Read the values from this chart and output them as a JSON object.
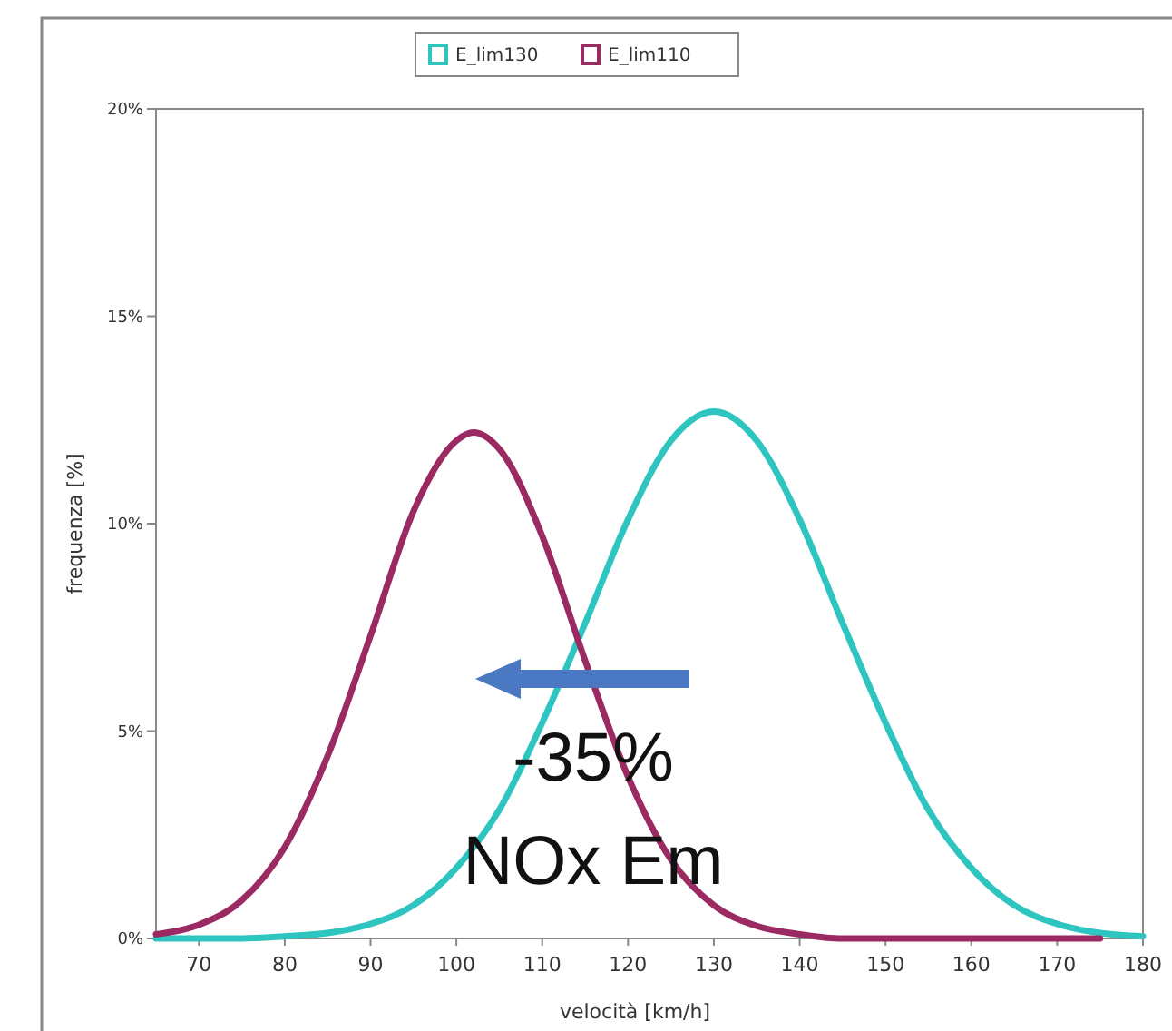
{
  "chart_data": {
    "type": "line",
    "xlabel": "velocità [km/h]",
    "ylabel": "frequenza [%]",
    "xlim": [
      65,
      180
    ],
    "xticks": [
      70,
      80,
      90,
      100,
      110,
      120,
      130,
      140,
      150,
      160,
      170,
      180
    ],
    "ylim": [
      0,
      20
    ],
    "yticks": [
      {
        "value": 0,
        "label": "0%"
      },
      {
        "value": 5,
        "label": "5%"
      },
      {
        "value": 10,
        "label": "10%"
      },
      {
        "value": 15,
        "label": "15%"
      },
      {
        "value": 20,
        "label": "20%"
      }
    ],
    "grid": false,
    "legend": "top",
    "marker": "none",
    "line_style": "solid",
    "annotations": [
      "-35%",
      "NOx Em"
    ],
    "series": [
      {
        "name": "E_lim130",
        "color": "#2ec4c0",
        "x": [
          65,
          70,
          75,
          80,
          85,
          90,
          95,
          100,
          105,
          110,
          115,
          120,
          125,
          130,
          135,
          140,
          145,
          150,
          155,
          160,
          165,
          170,
          175,
          180
        ],
        "values": [
          0,
          0,
          0,
          0.05,
          0.13,
          0.35,
          0.8,
          1.7,
          3.1,
          5.2,
          7.6,
          10.1,
          12.0,
          12.7,
          12.0,
          10.1,
          7.6,
          5.2,
          3.1,
          1.7,
          0.8,
          0.35,
          0.13,
          0.05
        ]
      },
      {
        "name": "E_lim110",
        "color": "#9b2a62",
        "x": [
          65,
          70,
          75,
          80,
          85,
          90,
          95,
          100,
          102,
          105,
          110,
          115,
          120,
          125,
          130,
          135,
          140,
          145,
          150,
          155,
          160,
          165,
          170,
          175
        ],
        "values": [
          0.1,
          0.33,
          0.92,
          2.2,
          4.4,
          7.3,
          10.3,
          12.0,
          12.2,
          11.8,
          9.7,
          6.7,
          3.9,
          1.9,
          0.8,
          0.3,
          0.1,
          0,
          0,
          0,
          0,
          0,
          0,
          0
        ]
      }
    ]
  }
}
